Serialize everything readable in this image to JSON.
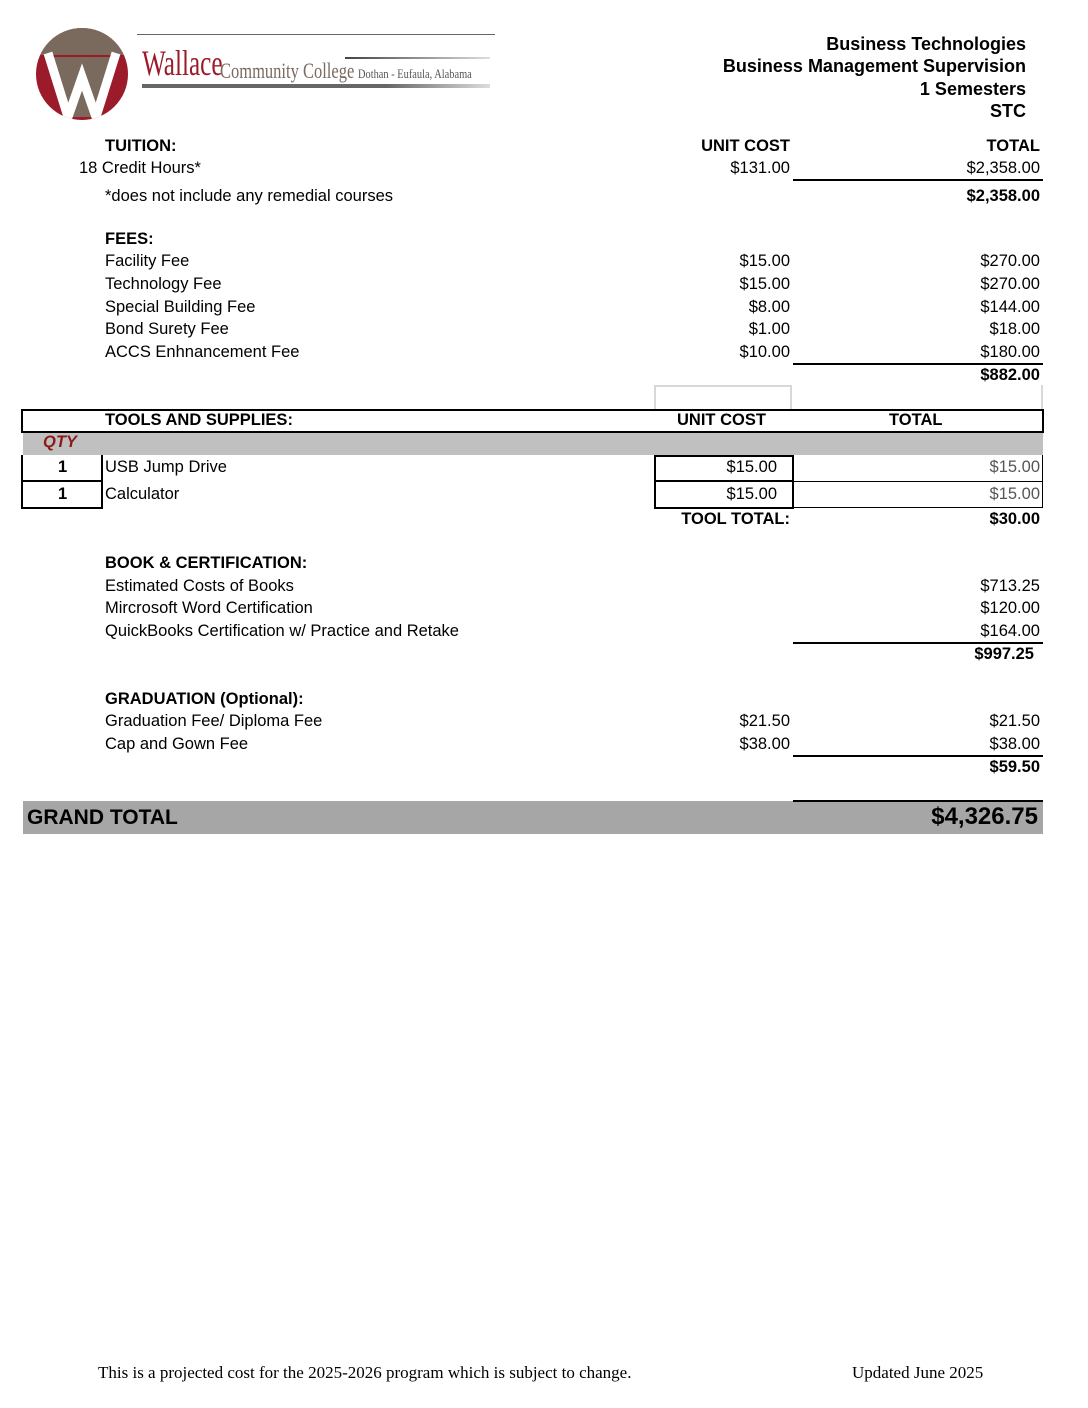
{
  "logo": {
    "name": "Wallace",
    "subname": "Community College",
    "location": "Dothan - Eufaula, Alabama",
    "colors": {
      "maroon": "#9b1b2a",
      "brown": "#7a6a5e"
    }
  },
  "header": {
    "line1": "Business Technologies",
    "line2": "Business Management Supervision",
    "line3": "1 Semesters",
    "line4": "STC"
  },
  "tuition": {
    "heading": "TUITION:",
    "unit_cost_header": "UNIT COST",
    "total_header": "TOTAL",
    "item": "18 Credit Hours*",
    "unit_cost": "$131.00",
    "total": "$2,358.00",
    "note": "*does not include any remedial courses",
    "subtotal": "$2,358.00"
  },
  "fees": {
    "heading": "FEES:",
    "items": [
      {
        "label": "Facility Fee",
        "unit_cost": "$15.00",
        "total": "$270.00"
      },
      {
        "label": "Technology Fee",
        "unit_cost": "$15.00",
        "total": "$270.00"
      },
      {
        "label": "Special Building Fee",
        "unit_cost": "$8.00",
        "total": "$144.00"
      },
      {
        "label": "Bond Surety Fee",
        "unit_cost": "$1.00",
        "total": "$18.00"
      },
      {
        "label": "ACCS Enhnancement Fee",
        "unit_cost": "$10.00",
        "total": "$180.00"
      }
    ],
    "subtotal": "$882.00"
  },
  "tools": {
    "heading": "TOOLS AND SUPPLIES:",
    "unit_cost_header": "UNIT COST",
    "total_header": "TOTAL",
    "qty_header": "QTY",
    "items": [
      {
        "qty": "1",
        "label": "USB Jump Drive",
        "unit_cost": "$15.00",
        "total": "$15.00"
      },
      {
        "qty": "1",
        "label": "Calculator",
        "unit_cost": "$15.00",
        "total": "$15.00"
      }
    ],
    "total_label": "TOOL TOTAL:",
    "total": "$30.00"
  },
  "books": {
    "heading": "BOOK & CERTIFICATION:",
    "items": [
      {
        "label": "Estimated Costs of Books",
        "total": "$713.25"
      },
      {
        "label": "Mircrosoft Word Certification",
        "total": "$120.00"
      },
      {
        "label": "QuickBooks Certification w/ Practice and Retake",
        "total": "$164.00"
      }
    ],
    "subtotal": "$997.25"
  },
  "graduation": {
    "heading": "GRADUATION (Optional):",
    "items": [
      {
        "label": "Graduation Fee/ Diploma Fee",
        "unit_cost": "$21.50",
        "total": "$21.50"
      },
      {
        "label": "Cap and Gown Fee",
        "unit_cost": "$38.00",
        "total": "$38.00"
      }
    ],
    "subtotal": "$59.50"
  },
  "grand_total": {
    "label": "GRAND TOTAL",
    "value": "$4,326.75"
  },
  "footer": {
    "note": "This is a projected cost for the 2025-2026 program which is subject to change.",
    "updated": "Updated June 2025"
  }
}
